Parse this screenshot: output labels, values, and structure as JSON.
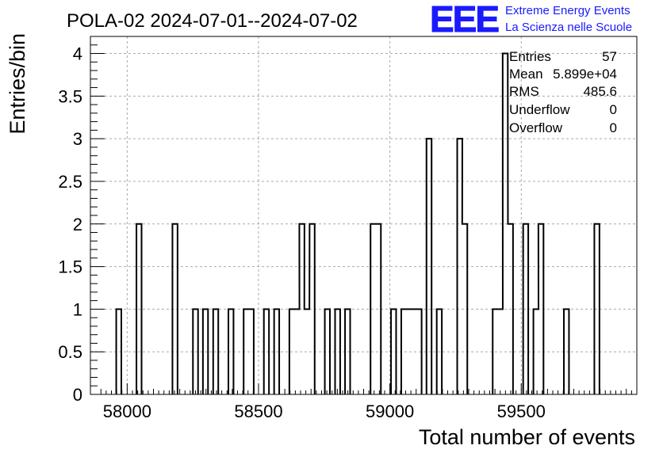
{
  "chart_data": {
    "type": "histogram",
    "title": "POLA-02 2024-07-01--2024-07-02",
    "xlabel": "Total number of events",
    "ylabel": "Entries/bin",
    "xlim": [
      57860,
      59940
    ],
    "ylim": [
      0,
      4.2
    ],
    "bin_width": 19.4,
    "xticks": [
      58000,
      58500,
      59000,
      59500
    ],
    "yticks": [
      0,
      0.5,
      1,
      1.5,
      2,
      2.5,
      3,
      3.5,
      4
    ],
    "ytick_labels": [
      "0",
      "0.5",
      "1",
      "1.5",
      "2",
      "2.5",
      "3",
      "3.5",
      "4"
    ],
    "grid": true,
    "bins": [
      {
        "x": 57968,
        "count": 1
      },
      {
        "x": 58045,
        "count": 2
      },
      {
        "x": 58182,
        "count": 2
      },
      {
        "x": 58260,
        "count": 1
      },
      {
        "x": 58298,
        "count": 1
      },
      {
        "x": 58337,
        "count": 1
      },
      {
        "x": 58395,
        "count": 1
      },
      {
        "x": 58453,
        "count": 1
      },
      {
        "x": 58472,
        "count": 1
      },
      {
        "x": 58530,
        "count": 1
      },
      {
        "x": 58569,
        "count": 1
      },
      {
        "x": 58627,
        "count": 1
      },
      {
        "x": 58646,
        "count": 1
      },
      {
        "x": 58665,
        "count": 2
      },
      {
        "x": 58684,
        "count": 1
      },
      {
        "x": 58704,
        "count": 2
      },
      {
        "x": 58762,
        "count": 1
      },
      {
        "x": 58801,
        "count": 1
      },
      {
        "x": 58839,
        "count": 1
      },
      {
        "x": 58936,
        "count": 2
      },
      {
        "x": 58956,
        "count": 2
      },
      {
        "x": 59014,
        "count": 1
      },
      {
        "x": 59053,
        "count": 1
      },
      {
        "x": 59072,
        "count": 1
      },
      {
        "x": 59091,
        "count": 1
      },
      {
        "x": 59111,
        "count": 1
      },
      {
        "x": 59149,
        "count": 3
      },
      {
        "x": 59188,
        "count": 1
      },
      {
        "x": 59266,
        "count": 3
      },
      {
        "x": 59285,
        "count": 2
      },
      {
        "x": 59401,
        "count": 1
      },
      {
        "x": 59420,
        "count": 1
      },
      {
        "x": 59439,
        "count": 4
      },
      {
        "x": 59459,
        "count": 2
      },
      {
        "x": 59517,
        "count": 2
      },
      {
        "x": 59556,
        "count": 1
      },
      {
        "x": 59575,
        "count": 2
      },
      {
        "x": 59672,
        "count": 1
      },
      {
        "x": 59788,
        "count": 2
      }
    ],
    "stats": [
      {
        "label": "Entries",
        "value": "57"
      },
      {
        "label": "Mean",
        "value": "5.899e+04"
      },
      {
        "label": "RMS",
        "value": "485.6"
      },
      {
        "label": "Underflow",
        "value": "0"
      },
      {
        "label": "Overflow",
        "value": "0"
      }
    ]
  },
  "logo": {
    "mark": "EEE",
    "line1": "Extreme Energy Events",
    "line2": "La Scienza nelle Scuole",
    "color": "#1a1aff"
  }
}
